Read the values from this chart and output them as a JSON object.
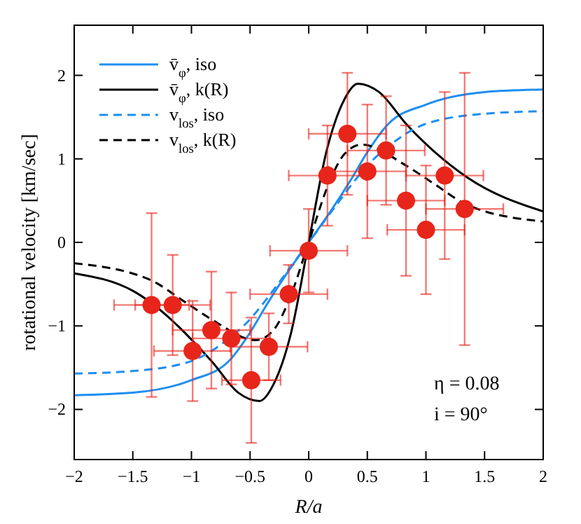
{
  "chart_data": {
    "type": "line",
    "xlabel": "R/a",
    "ylabel": "rotational velocity [km/sec]",
    "xlim": [
      -2,
      2
    ],
    "ylim": [
      -2.6,
      2.6
    ],
    "xticks": [
      {
        "value": -2,
        "label": "−2"
      },
      {
        "value": -1.5,
        "label": "−1.5"
      },
      {
        "value": -1,
        "label": "−1"
      },
      {
        "value": -0.5,
        "label": "−0.5"
      },
      0,
      0.5,
      1,
      1.5,
      2
    ],
    "yticks": [
      {
        "value": -2,
        "label": "−2"
      },
      {
        "value": -1,
        "label": "−1"
      },
      0,
      1,
      2
    ],
    "grid": false,
    "legend": "top left",
    "annotations": [
      "η = 0.08",
      "i = 90°"
    ],
    "series": [
      {
        "name": "v̄$_{φ}$, iso",
        "line_style": "solid",
        "color": "#1f8ef0",
        "x": [
          -2,
          -1.5,
          -1,
          -0.68,
          -0.5,
          -0.36,
          -0.2,
          0,
          0.2,
          0.36,
          0.5,
          0.68,
          1,
          1.5,
          2
        ],
        "values": [
          -1.83,
          -1.8,
          -1.65,
          -1.42,
          -1.08,
          -0.75,
          -0.4,
          0,
          0.4,
          0.75,
          1.08,
          1.42,
          1.65,
          1.8,
          1.83
        ]
      },
      {
        "name": "v̄$_{φ}$, k(R)",
        "line_style": "solid",
        "color": "#000000",
        "x": [
          -2,
          -1.5,
          -0.83,
          -0.6,
          -0.42,
          -0.3,
          -0.15,
          0,
          0.15,
          0.3,
          0.42,
          0.6,
          0.83,
          1.35,
          2
        ],
        "values": [
          -0.37,
          -0.58,
          -1.42,
          -1.8,
          -1.9,
          -1.7,
          -1.08,
          0,
          1.08,
          1.7,
          1.9,
          1.8,
          1.42,
          0.78,
          0.37
        ]
      },
      {
        "name": "v$_{los}$, iso",
        "line_style": "dashed",
        "color": "#1f8ef0",
        "x": [
          -2,
          -1.5,
          -1,
          -0.68,
          -0.5,
          -0.36,
          -0.2,
          0,
          0.2,
          0.36,
          0.5,
          0.68,
          1,
          1.5,
          2
        ],
        "values": [
          -1.57,
          -1.54,
          -1.42,
          -1.15,
          -0.92,
          -0.68,
          -0.38,
          0,
          0.38,
          0.68,
          0.92,
          1.15,
          1.42,
          1.54,
          1.57
        ]
      },
      {
        "name": "v$_{los}$, k(R)",
        "line_style": "dashed",
        "color": "#000000",
        "x": [
          -2,
          -1.35,
          -1.07,
          -0.83,
          -0.45,
          -0.3,
          -0.17,
          0,
          0.17,
          0.3,
          0.45,
          0.83,
          1.07,
          1.35,
          2
        ],
        "values": [
          -0.25,
          -0.45,
          -0.7,
          -0.92,
          -1.17,
          -1.05,
          -0.7,
          0,
          0.7,
          1.05,
          1.17,
          0.92,
          0.7,
          0.45,
          0.25
        ]
      },
      {
        "type": "scatter",
        "marker": "circle",
        "color": "#e8251a",
        "x": [
          -1.34,
          -1.16,
          -0.99,
          -0.83,
          -0.66,
          -0.49,
          -0.34,
          -0.17,
          0,
          0.16,
          0.33,
          0.5,
          0.66,
          0.83,
          1,
          1.16,
          1.33
        ],
        "values": [
          -0.75,
          -0.75,
          -1.3,
          -1.05,
          -1.15,
          -1.65,
          -1.25,
          -0.62,
          -0.1,
          0.8,
          1.3,
          0.85,
          1.1,
          0.5,
          0.15,
          0.8,
          0.4
        ],
        "errors": [
          1.1,
          0.6,
          0.6,
          0.7,
          0.55,
          0.75,
          0.4,
          0.35,
          0.5,
          0.6,
          0.73,
          0.8,
          0.65,
          0.9,
          0.77,
          1.0,
          1.63
        ],
        "xerrors": [
          0.32,
          0.32,
          0.33,
          0.33,
          0.33,
          0.25,
          0.33,
          0.33,
          0.33,
          0.33,
          0.33,
          0.33,
          0.33,
          0.33,
          0.33,
          0.33,
          0.33
        ]
      }
    ]
  }
}
